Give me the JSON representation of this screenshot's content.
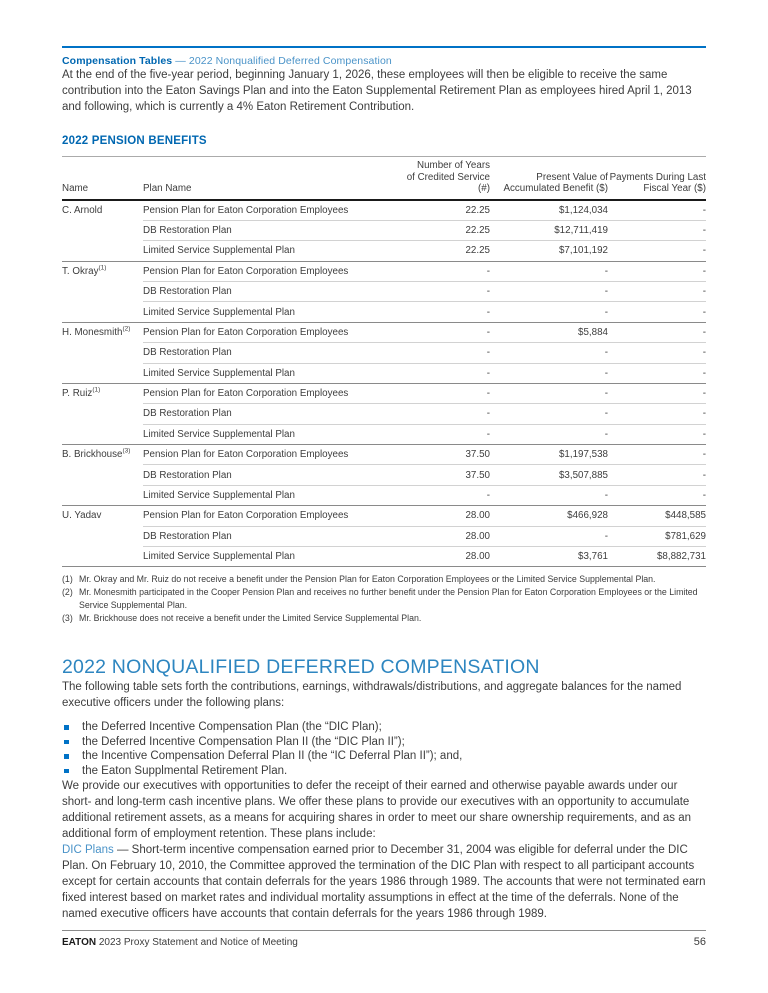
{
  "running_header": {
    "section": "Compensation Tables",
    "subsection": "— 2022 Nonqualified Deferred Compensation"
  },
  "intro_paragraph": "At the end of the five-year period, beginning January 1, 2026, these employees will then be eligible to receive the same contribution into the Eaton Savings Plan and into the Eaton Supplemental Retirement Plan as employees hired April 1, 2013 and following, which is currently a 4% Eaton Retirement Contribution.",
  "pension_table": {
    "title": "2022 PENSION BENEFITS",
    "columns": {
      "name": "Name",
      "plan": "Plan Name",
      "years": "Number of Years\nof Credited Service (#)",
      "present_value": "Present Value of\nAccumulated Benefit ($)",
      "payments": "Payments During Last\nFiscal Year ($)"
    },
    "groups": [
      {
        "name": "C. Arnold",
        "footnote_ref": "",
        "rows": [
          {
            "plan": "Pension Plan for Eaton Corporation Employees",
            "years": "22.25",
            "present_value": "$1,124,034",
            "payments": "-"
          },
          {
            "plan": "DB Restoration Plan",
            "years": "22.25",
            "present_value": "$12,711,419",
            "payments": "-"
          },
          {
            "plan": "Limited Service Supplemental Plan",
            "years": "22.25",
            "present_value": "$7,101,192",
            "payments": "-"
          }
        ]
      },
      {
        "name": "T. Okray",
        "footnote_ref": "(1)",
        "rows": [
          {
            "plan": "Pension Plan for Eaton Corporation Employees",
            "years": "-",
            "present_value": "-",
            "payments": "-"
          },
          {
            "plan": "DB Restoration Plan",
            "years": "-",
            "present_value": "-",
            "payments": "-"
          },
          {
            "plan": "Limited Service Supplemental Plan",
            "years": "-",
            "present_value": "-",
            "payments": "-"
          }
        ]
      },
      {
        "name": "H. Monesmith",
        "footnote_ref": "(2)",
        "rows": [
          {
            "plan": "Pension Plan for Eaton Corporation Employees",
            "years": "-",
            "present_value": "$5,884",
            "payments": "-"
          },
          {
            "plan": "DB Restoration Plan",
            "years": "-",
            "present_value": "-",
            "payments": "-"
          },
          {
            "plan": "Limited Service Supplemental Plan",
            "years": "-",
            "present_value": "-",
            "payments": "-"
          }
        ]
      },
      {
        "name": "P. Ruiz",
        "footnote_ref": "(1)",
        "rows": [
          {
            "plan": "Pension Plan for Eaton Corporation Employees",
            "years": "-",
            "present_value": "-",
            "payments": "-"
          },
          {
            "plan": "DB Restoration Plan",
            "years": "-",
            "present_value": "-",
            "payments": "-"
          },
          {
            "plan": "Limited Service Supplemental Plan",
            "years": "-",
            "present_value": "-",
            "payments": "-"
          }
        ]
      },
      {
        "name": "B. Brickhouse",
        "footnote_ref": "(3)",
        "rows": [
          {
            "plan": "Pension Plan for Eaton Corporation Employees",
            "years": "37.50",
            "present_value": "$1,197,538",
            "payments": "-"
          },
          {
            "plan": "DB Restoration Plan",
            "years": "37.50",
            "present_value": "$3,507,885",
            "payments": "-"
          },
          {
            "plan": "Limited Service Supplemental Plan",
            "years": "-",
            "present_value": "-",
            "payments": "-"
          }
        ]
      },
      {
        "name": "U. Yadav",
        "footnote_ref": "",
        "rows": [
          {
            "plan": "Pension Plan for Eaton Corporation Employees",
            "years": "28.00",
            "present_value": "$466,928",
            "payments": "$448,585"
          },
          {
            "plan": "DB Restoration Plan",
            "years": "28.00",
            "present_value": "-",
            "payments": "$781,629"
          },
          {
            "plan": "Limited Service Supplemental Plan",
            "years": "28.00",
            "present_value": "$3,761",
            "payments": "$8,882,731"
          }
        ]
      }
    ],
    "footnotes": [
      {
        "ref": "(1)",
        "text": "Mr. Okray and Mr. Ruiz do not receive a benefit under the Pension Plan for Eaton Corporation Employees or the Limited Service Supplemental Plan."
      },
      {
        "ref": "(2)",
        "text": "Mr. Monesmith participated in the Cooper Pension Plan and receives no further benefit under the Pension Plan for Eaton Corporation Employees or the Limited Service Supplemental Plan."
      },
      {
        "ref": "(3)",
        "text": "Mr. Brickhouse does not receive a benefit under the Limited Service Supplemental Plan."
      }
    ]
  },
  "deferred_comp_section": {
    "heading": "2022 NONQUALIFIED DEFERRED COMPENSATION",
    "intro": "The following table sets forth the contributions, earnings, withdrawals/distributions, and aggregate balances for the named executive officers under the following plans:",
    "bullets": [
      "the Deferred Incentive Compensation Plan (the “DIC Plan);",
      "the Deferred Incentive Compensation Plan II (the “DIC Plan II”);",
      "the Incentive Compensation Deferral Plan II (the “IC Deferral Plan II”); and,",
      "the Eaton Supplmental Retirement Plan."
    ],
    "paragraph": "We provide our executives with opportunities to defer the receipt of their earned and otherwise payable awards under our short- and long-term cash incentive plans. We offer these plans to provide our executives with an opportunity to accumulate additional retirement assets, as a means for acquiring shares in order to meet our share ownership requirements, and as an additional form of employment retention. These plans include:",
    "dic_plans_lead": "DIC Plans",
    "dic_plans_body": "— Short-term incentive compensation earned prior to December 31, 2004 was eligible for deferral under the DIC Plan. On February 10, 2010, the Committee approved the termination of the DIC Plan with respect to all participant accounts except for certain accounts that contain deferrals for the years 1986 through 1989. The accounts that were not terminated earn fixed interest based on market rates and individual mortality assumptions in effect at the time of the deferrals. None of the named executive officers have accounts that contain deferrals for the years 1986 through 1989."
  },
  "footer": {
    "brand": "EATON",
    "title": "2023 Proxy Statement and Notice of Meeting",
    "page_number": "56"
  },
  "colors": {
    "brand_blue": "#0067b1",
    "light_blue": "#4a93c8",
    "heading_blue": "#2e86c0",
    "rule_blue": "#0072c6"
  }
}
